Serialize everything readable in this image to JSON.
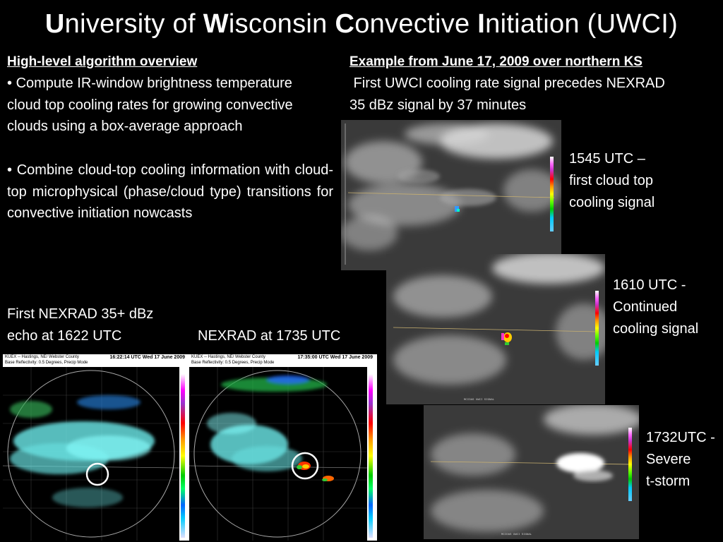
{
  "title": {
    "w1_initial": "U",
    "w1_rest": "niversity of ",
    "w2_initial": "W",
    "w2_rest": "isconsin ",
    "w3_initial": "C",
    "w3_rest": "onvective ",
    "w4_initial": "I",
    "w4_rest": "nitiation (UWCI)"
  },
  "left": {
    "heading": "High-level algorithm overview",
    "bullet1": "Compute IR-window brightness temperature cloud top cooling rates for growing convective clouds using a box-average approach",
    "bullet2": "Combine cloud-top cooling information with cloud-top microphysical (phase/cloud type) transitions for convective initiation nowcasts",
    "bullet_symbol": "•"
  },
  "right": {
    "heading": "Example from June 17, 2009 over northern KS",
    "line1": " First UWCI cooling rate signal precedes NEXRAD",
    "line2": "35 dBz signal by 37 minutes"
  },
  "captions": {
    "sat1_l1": "1545 UTC –",
    "sat1_l2": "first cloud top",
    "sat1_l3": "cooling signal",
    "sat2_l1": "1610 UTC -",
    "sat2_l2": "Continued",
    "sat2_l3": "cooling signal",
    "sat3_l1": "1732UTC -",
    "sat3_l2": "Severe",
    "sat3_l3": "t-storm",
    "nexrad1_l1": "First NEXRAD 35+ dBz",
    "nexrad1_l2": "echo at 1622 UTC",
    "nexrad2": "NEXRAD at 1735 UTC"
  },
  "radar1": {
    "site": "KUEX -- Hastings, NE/ Webster County",
    "time": "16:22:14 UTC Wed 17 June 2009",
    "product": "Base Reflectivity: 0.5 Degrees, Precip Mode"
  },
  "radar2": {
    "site": "KUEX -- Hastings, NE/ Webster County",
    "time": "17:35:00 UTC Wed 17 June 2009",
    "product": "Base Reflectivity: 0.5 Degrees, Precip Mode"
  },
  "colors": {
    "background": "#000000",
    "text": "#ffffff",
    "highlight_circle": "#ffffff"
  }
}
